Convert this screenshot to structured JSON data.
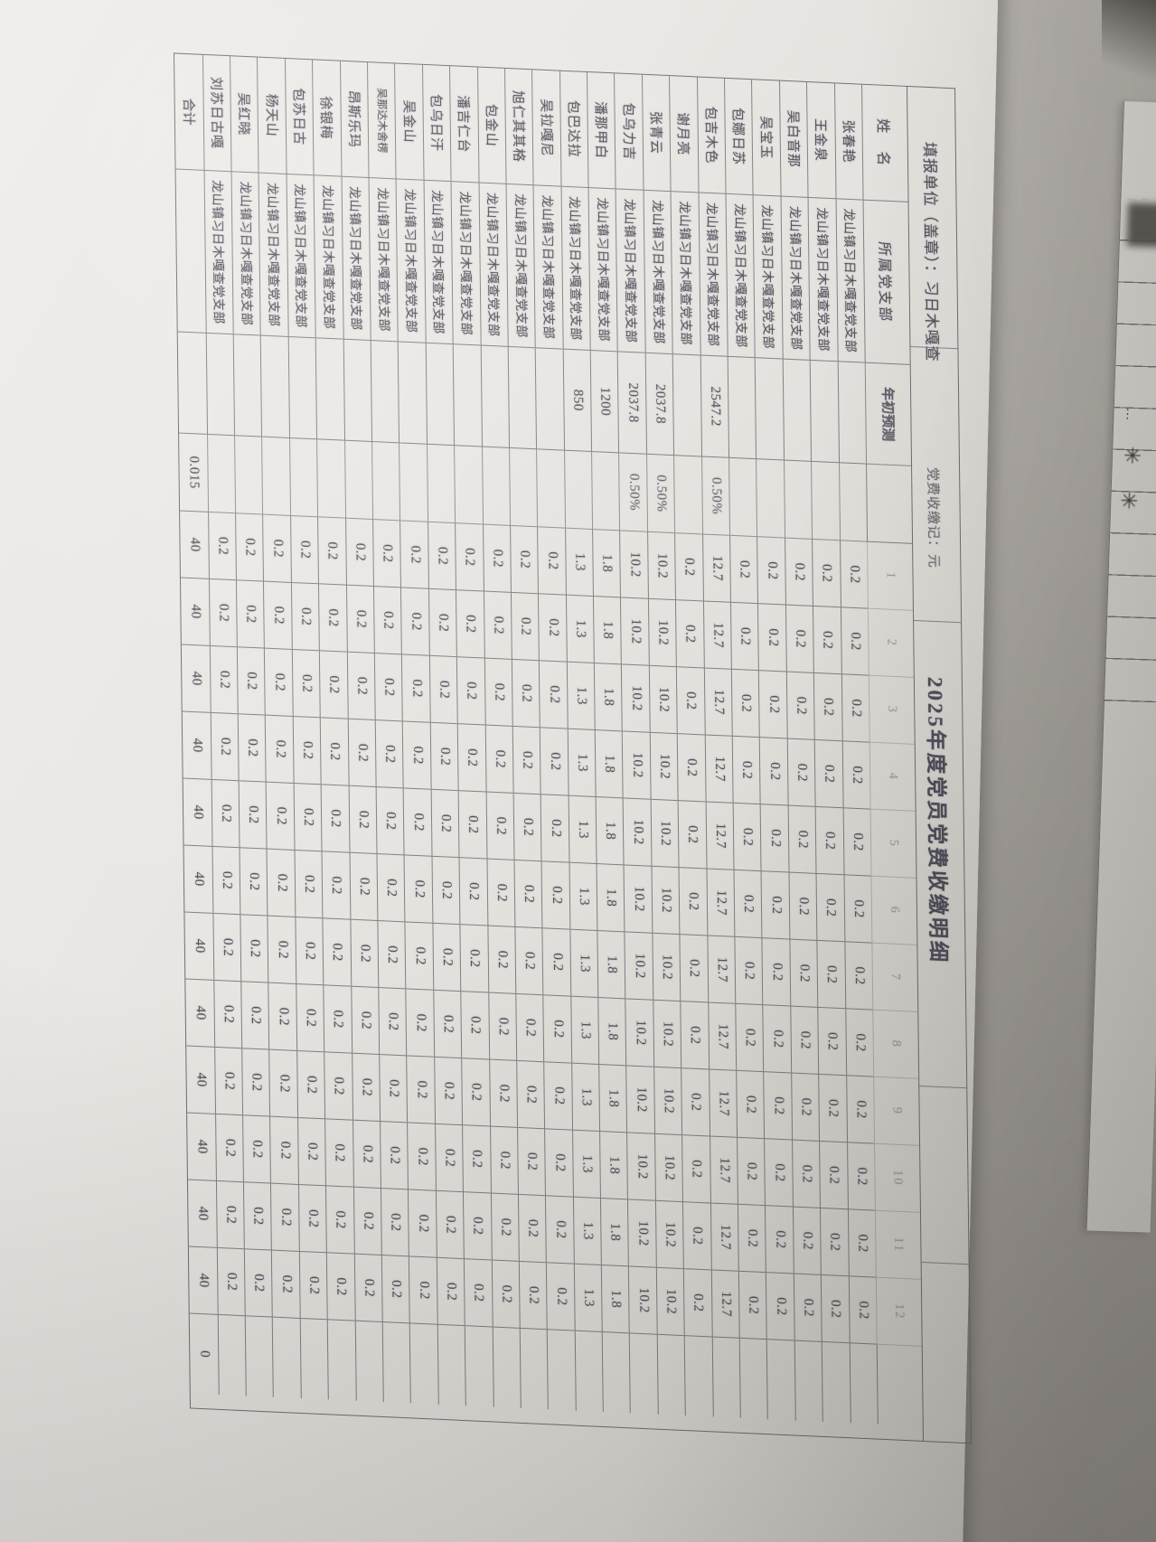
{
  "form": {
    "top_line": {
      "report_unit": "填报单位（盖章）：习日木嘎查",
      "unit_note": "党费收缴记：元",
      "title": "2025年度党员党费收缴明细"
    },
    "header": {
      "name": "姓　名",
      "branch": "所属党支部",
      "base": "年初预测",
      "rate": "",
      "months": [
        "1",
        "2",
        "3",
        "4",
        "5",
        "6",
        "7",
        "8",
        "9",
        "10",
        "11",
        "12"
      ],
      "total": ""
    },
    "branch_value": "龙山镇习日木嘎查党支部",
    "rows": [
      {
        "name": "张春艳",
        "base": "",
        "rate": "",
        "monthly": "0.2",
        "total": ""
      },
      {
        "name": "王金泉",
        "base": "",
        "rate": "",
        "monthly": "0.2",
        "total": ""
      },
      {
        "name": "吴白音那",
        "base": "",
        "rate": "",
        "monthly": "0.2",
        "total": ""
      },
      {
        "name": "吴宝玉",
        "base": "",
        "rate": "",
        "monthly": "0.2",
        "total": ""
      },
      {
        "name": "包娜日苏",
        "base": "",
        "rate": "",
        "monthly": "0.2",
        "total": ""
      },
      {
        "name": "包吉木色",
        "base": "2547.2",
        "rate": "0.50%",
        "monthly": "12.7",
        "total": ""
      },
      {
        "name": "谢月亮",
        "base": "",
        "rate": "",
        "monthly": "0.2",
        "total": ""
      },
      {
        "name": "张青云",
        "base": "2037.8",
        "rate": "0.50%",
        "monthly": "10.2",
        "total": ""
      },
      {
        "name": "包乌力吉",
        "base": "2037.8",
        "rate": "0.50%",
        "monthly": "10.2",
        "total": ""
      },
      {
        "name": "潘那甲白",
        "base": "1200",
        "rate": "",
        "monthly": "1.8",
        "total": ""
      },
      {
        "name": "包巴达拉",
        "base": "850",
        "rate": "",
        "monthly": "1.3",
        "total": ""
      },
      {
        "name": "吴拉嘎尼",
        "base": "",
        "rate": "",
        "monthly": "0.2",
        "total": ""
      },
      {
        "name": "旭仁其其格",
        "base": "",
        "rate": "",
        "monthly": "0.2",
        "total": ""
      },
      {
        "name": "包金山",
        "base": "",
        "rate": "",
        "monthly": "0.2",
        "total": ""
      },
      {
        "name": "潘吉仁台",
        "base": "",
        "rate": "",
        "monthly": "0.2",
        "total": ""
      },
      {
        "name": "包乌日汗",
        "base": "",
        "rate": "",
        "monthly": "0.2",
        "total": ""
      },
      {
        "name": "吴金山",
        "base": "",
        "rate": "",
        "monthly": "0.2",
        "total": ""
      },
      {
        "name": "吴那达木舍楞",
        "base": "",
        "rate": "",
        "monthly": "0.2",
        "total": ""
      },
      {
        "name": "昂斯乐玛",
        "base": "",
        "rate": "",
        "monthly": "0.2",
        "total": ""
      },
      {
        "name": "徐银梅",
        "base": "",
        "rate": "",
        "monthly": "0.2",
        "total": ""
      },
      {
        "name": "包苏日古",
        "base": "",
        "rate": "",
        "monthly": "0.2",
        "total": ""
      },
      {
        "name": "杨天山",
        "base": "",
        "rate": "",
        "monthly": "0.2",
        "total": ""
      },
      {
        "name": "吴红晓",
        "base": "",
        "rate": "",
        "monthly": "0.2",
        "total": ""
      },
      {
        "name": "刘苏日古嘎",
        "base": "",
        "rate": "",
        "monthly": "0.2",
        "total": ""
      }
    ],
    "total_row": {
      "name": "合计",
      "base": "",
      "rate": "0.015",
      "monthly": "40",
      "total": "0"
    }
  },
  "side_sheet": {
    "marks": [
      "✳",
      "✳"
    ]
  }
}
